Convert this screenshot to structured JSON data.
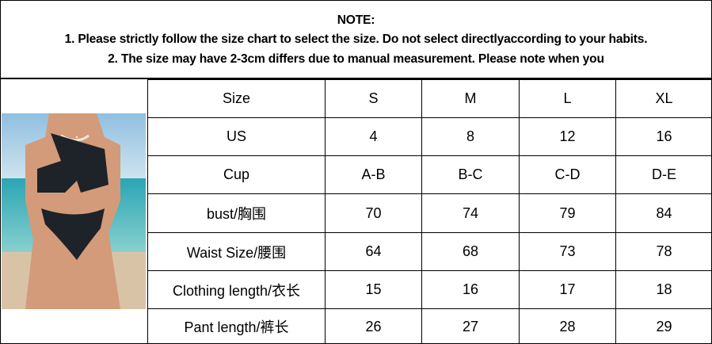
{
  "note": {
    "title": "NOTE:",
    "line1": "1. Please strictly follow the size chart to select the size. Do not select directlyaccording to your habits.",
    "line2": "2. The size may have 2-3cm differs due to manual measurement. Please note when you"
  },
  "photo": {
    "subject": "model in black one-shoulder bikini on beach"
  },
  "table": {
    "header": [
      "Size",
      "S",
      "M",
      "L",
      "XL"
    ],
    "rows": [
      [
        "US",
        "4",
        "8",
        "12",
        "16"
      ],
      [
        "Cup",
        "A-B",
        "B-C",
        "C-D",
        "D-E"
      ],
      [
        "bust/胸围",
        "70",
        "74",
        "79",
        "84"
      ],
      [
        "Waist Size/腰围",
        "64",
        "68",
        "73",
        "78"
      ],
      [
        "Clothing length/衣长",
        "15",
        "16",
        "17",
        "18"
      ],
      [
        "Pant length/裤长",
        "26",
        "27",
        "28",
        "29"
      ]
    ]
  }
}
